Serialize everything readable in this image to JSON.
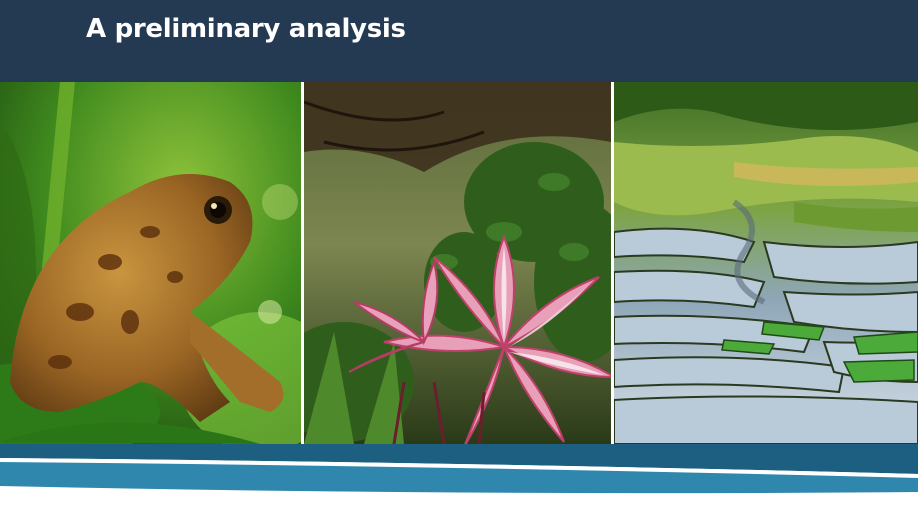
{
  "header": {
    "title": "A preliminary analysis",
    "background_color": "#243a52"
  },
  "photos": [
    {
      "subject": "toad-photo"
    },
    {
      "subject": "lily-flower-photo"
    },
    {
      "subject": "rice-terraces-photo"
    }
  ],
  "footer": {
    "band_dark_color": "#1c5f80",
    "band_light_color": "#2f87ad"
  }
}
